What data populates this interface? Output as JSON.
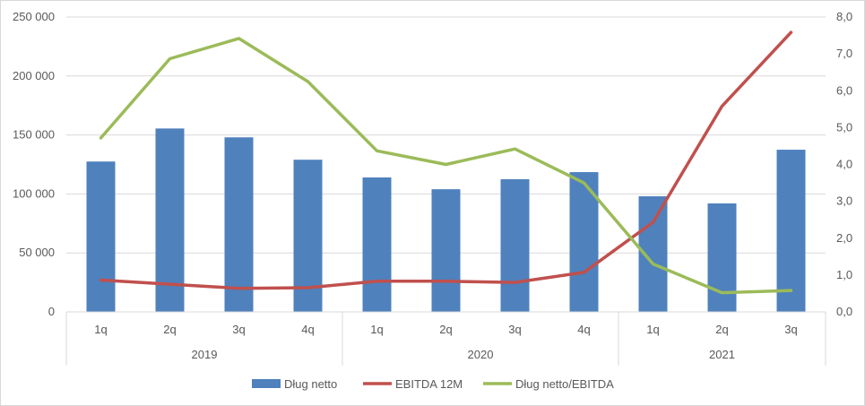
{
  "chart_data": {
    "type": "bar",
    "title": "",
    "xlabel": "",
    "ylabel": "",
    "categories": [
      "1q",
      "2q",
      "3q",
      "4q",
      "1q",
      "2q",
      "3q",
      "4q",
      "1q",
      "2q",
      "3q"
    ],
    "groups": [
      {
        "label": "2019",
        "count": 4
      },
      {
        "label": "2020",
        "count": 4
      },
      {
        "label": "2021",
        "count": 3
      }
    ],
    "ylim": [
      0,
      250000
    ],
    "y_ticks": [
      "0",
      "50 000",
      "100 000",
      "150 000",
      "200 000",
      "250 000"
    ],
    "y2lim": [
      0,
      8
    ],
    "y2_ticks": [
      "0,0",
      "1,0",
      "2,0",
      "3,0",
      "4,0",
      "5,0",
      "6,0",
      "7,0",
      "8,0"
    ],
    "grid": true,
    "legend_position": "bottom",
    "series": [
      {
        "name": "Dług netto",
        "type": "bar",
        "axis": "left",
        "color": "#4f81bd",
        "values": [
          127500,
          155500,
          148000,
          129000,
          114000,
          104000,
          112500,
          118500,
          98000,
          92000,
          137500
        ]
      },
      {
        "name": "EBITDA 12M",
        "type": "line",
        "axis": "left",
        "color": "#c0504d",
        "values": [
          27000,
          23500,
          20000,
          20500,
          26000,
          26000,
          25000,
          33500,
          76000,
          174500,
          237000
        ]
      },
      {
        "name": "Dług netto/EBITDA",
        "type": "line",
        "axis": "right",
        "color": "#9bbb59",
        "values": [
          4.72,
          6.87,
          7.42,
          6.25,
          4.37,
          4.0,
          4.42,
          3.5,
          1.3,
          0.52,
          0.58
        ]
      }
    ]
  }
}
